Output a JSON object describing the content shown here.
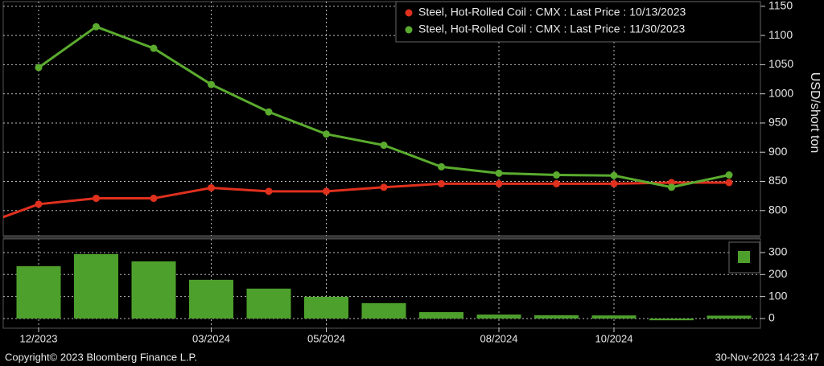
{
  "chart_data": [
    {
      "type": "line",
      "categories": [
        null,
        "12/2023",
        null,
        null,
        "03/2024",
        null,
        "05/2024",
        null,
        null,
        "08/2024",
        null,
        "10/2024",
        null,
        null
      ],
      "series": [
        {
          "name": "Steel, Hot-Rolled Coil : CMX : Last Price : 10/13/2023",
          "color": "#e0301e",
          "values": [
            775,
            811,
            821,
            821,
            839,
            833,
            833,
            840,
            846,
            846,
            846,
            846,
            848,
            848
          ]
        },
        {
          "name": "Steel, Hot-Rolled Coil : CMX : Last Price : 11/30/2023",
          "color": "#5aab2e",
          "values": [
            null,
            1045,
            1115,
            1078,
            1016,
            969,
            931,
            912,
            875,
            864,
            861,
            860,
            840,
            861
          ]
        }
      ],
      "y_label": "USD/short ton",
      "ylim": [
        757,
        1158
      ],
      "yticks": [
        800,
        850,
        900,
        950,
        1000,
        1050,
        1100,
        1150
      ],
      "grid": true
    },
    {
      "type": "bar",
      "values": [
        null,
        238,
        293,
        260,
        176,
        136,
        99,
        70,
        29,
        18,
        15,
        14,
        -8,
        13
      ],
      "color": "#4ea02c",
      "ylim": [
        -44,
        362
      ],
      "yticks": [
        0,
        100,
        200,
        300
      ],
      "grid": true
    }
  ],
  "footer": {
    "left": "Copyright© 2023 Bloomberg Finance L.P.",
    "right": "30-Nov-2023 14:23:47"
  }
}
